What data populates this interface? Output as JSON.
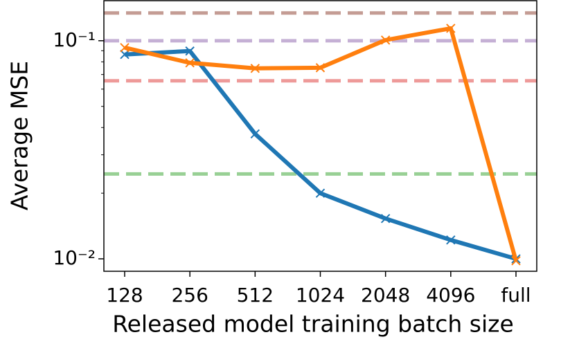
{
  "chart_data": {
    "type": "line",
    "xlabel": "Released model training batch size",
    "ylabel": "Average MSE",
    "categories": [
      "128",
      "256",
      "512",
      "1024",
      "2048",
      "4096",
      "full"
    ],
    "series": [
      {
        "color": "#1f77b4",
        "values": [
          0.0865,
          0.0897,
          0.0374,
          0.02,
          0.0153,
          0.0122,
          0.01
        ]
      },
      {
        "color": "#ff7f0e",
        "values": [
          0.093,
          0.0792,
          0.0747,
          0.0752,
          0.1007,
          0.114,
          0.0098
        ]
      }
    ],
    "hlines": [
      {
        "value": 0.134,
        "color": "#c49c94"
      },
      {
        "value": 0.1,
        "color": "#c5b0d5"
      },
      {
        "value": 0.0655,
        "color": "#ee9a99"
      },
      {
        "value": 0.0245,
        "color": "#98d094"
      }
    ],
    "ylog": true,
    "ylim": [
      0.00877,
      0.1526
    ],
    "yticks": [
      {
        "value": 0.01,
        "label": "10⁻²"
      },
      {
        "value": 0.1,
        "label": "10⁻¹"
      }
    ],
    "yminorticks": [
      0.02,
      0.03,
      0.04,
      0.05,
      0.06,
      0.07,
      0.08,
      0.09
    ]
  }
}
